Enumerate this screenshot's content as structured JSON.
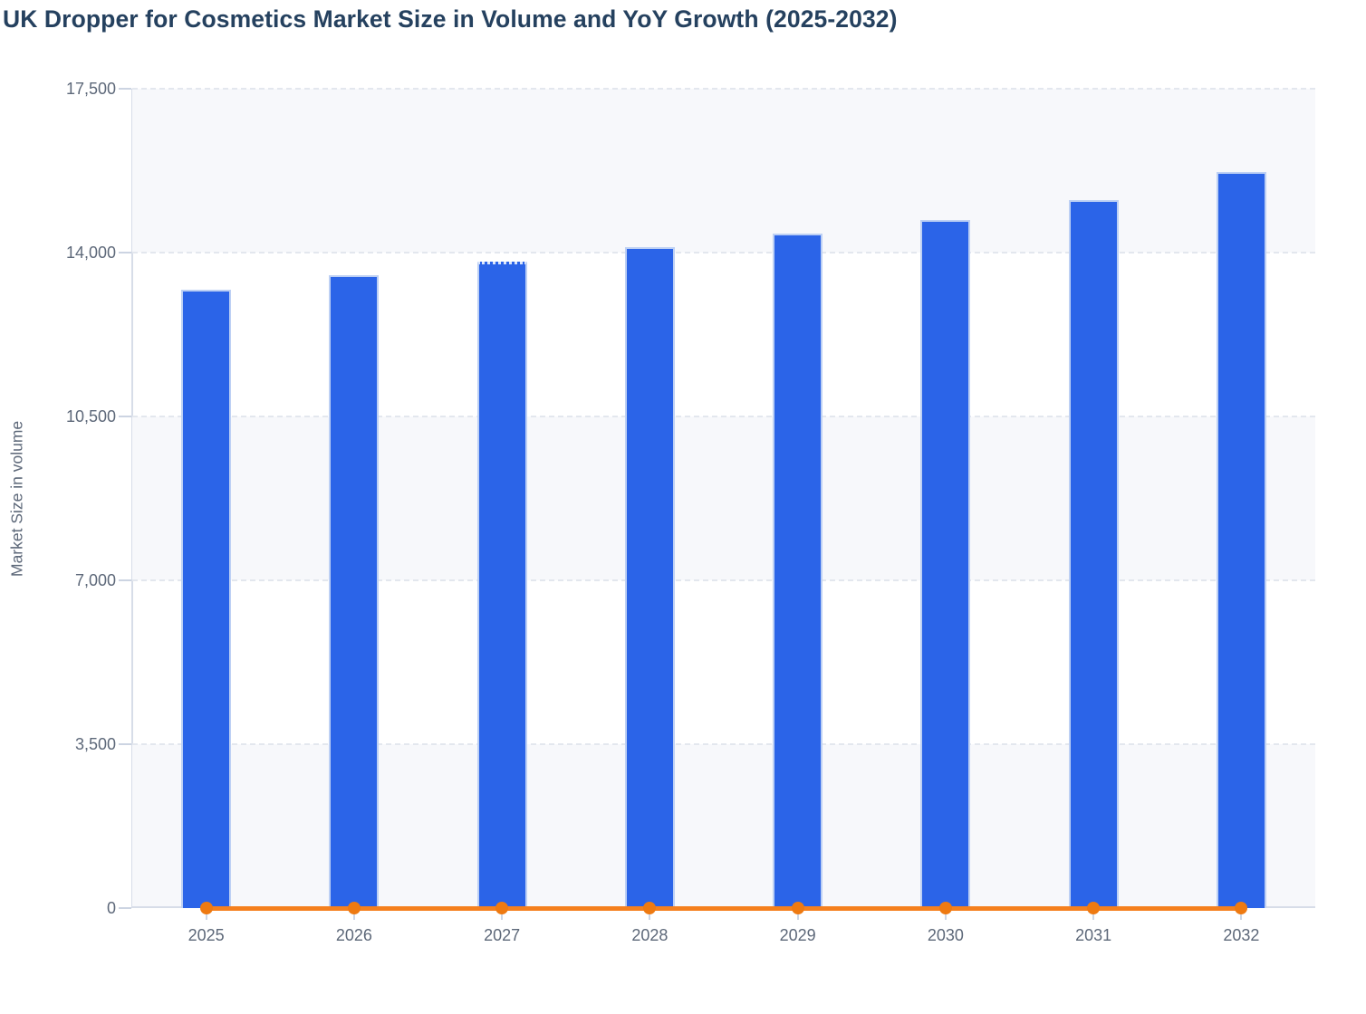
{
  "title": "UK Dropper for Cosmetics Market Size in Volume and YoY Growth (2025-2032)",
  "y_axis": {
    "label": "Market Size in volume",
    "tick_labels": [
      "0",
      "3,500",
      "7,000",
      "10,500",
      "14,000",
      "17,500"
    ],
    "tick_values": [
      0,
      3500,
      7000,
      10500,
      14000,
      17500
    ]
  },
  "x_axis": {
    "tick_labels": [
      "2025",
      "2026",
      "2027",
      "2028",
      "2029",
      "2030",
      "2031",
      "2032"
    ]
  },
  "chart_data": {
    "type": "bar",
    "title": "UK Dropper for Cosmetics Market Size in Volume and YoY Growth (2025-2032)",
    "categories": [
      "2025",
      "2026",
      "2027",
      "2028",
      "2029",
      "2030",
      "2031",
      "2032"
    ],
    "series": [
      {
        "name": "Market Size in volume",
        "type": "bar",
        "color": "#2b64e8",
        "values": [
          13210,
          13520,
          13810,
          14110,
          14400,
          14690,
          15120,
          15730
        ]
      },
      {
        "name": "YoY Growth",
        "type": "line",
        "color": "#f5801e",
        "marker_color": "#ee7a12",
        "values": [
          0,
          0,
          0,
          0,
          0,
          0,
          0,
          0
        ],
        "note": "line rendered flat along the zero baseline with a round marker at each year"
      }
    ],
    "xlabel": "",
    "ylabel": "Market Size in volume",
    "ylim": [
      0,
      17500
    ],
    "yticks": [
      0,
      3500,
      7000,
      10500,
      14000,
      17500
    ],
    "grid": "horizontal dashed gridlines with alternating background bands",
    "legend": "none",
    "bar_estimation": "values estimated from gridlines",
    "dotted_top_category": "2027"
  },
  "colors": {
    "title_text": "#25415f",
    "axis_text": "#5d6879",
    "bar_fill": "#2b64e8",
    "bar_stroke": "#bdd0f4",
    "line_orange": "#f5801e",
    "dot_orange": "#ee7a12",
    "band_light": "#f7f8fb",
    "gridline": "#e3e7ee",
    "axis_spine": "#d7dde8"
  }
}
